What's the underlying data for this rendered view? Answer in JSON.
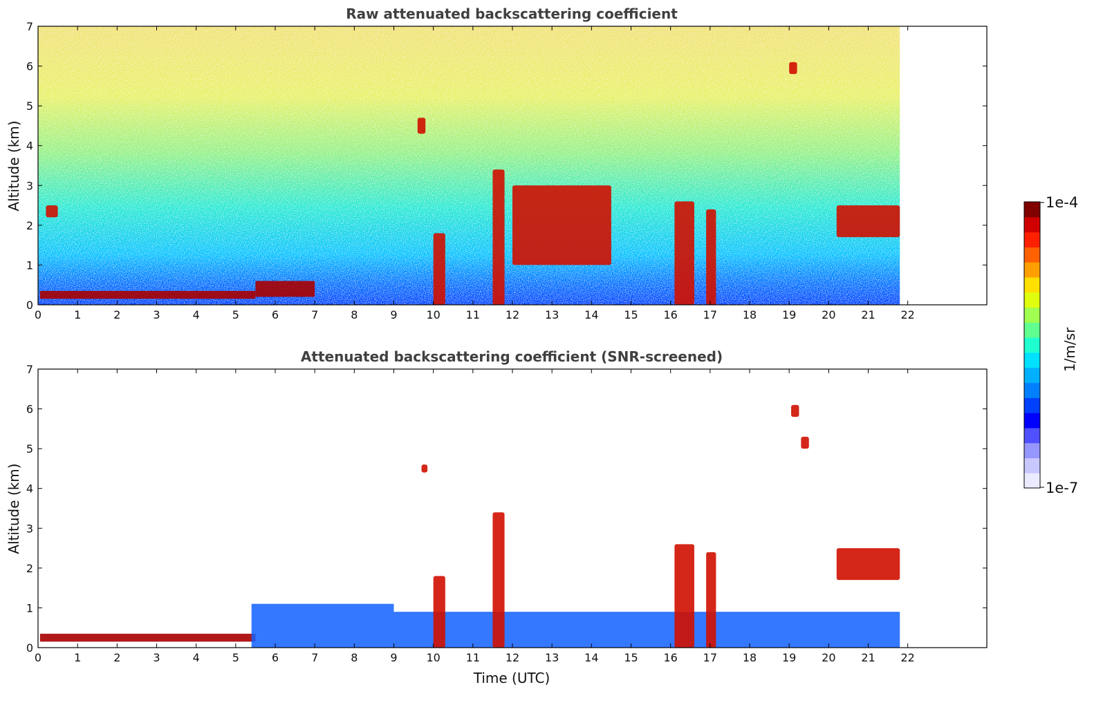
{
  "chart_data": [
    {
      "type": "heatmap",
      "title": "Raw attenuated backscattering coefficient",
      "xlabel": "",
      "ylabel": "Altitude (km)",
      "xlim": [
        0,
        24
      ],
      "ylim": [
        0,
        7
      ],
      "x_ticks": [
        "0",
        "1",
        "2",
        "3",
        "4",
        "5",
        "6",
        "7",
        "8",
        "9",
        "10",
        "11",
        "12",
        "13",
        "14",
        "15",
        "16",
        "17",
        "18",
        "19",
        "20",
        "21",
        "22"
      ],
      "y_ticks": [
        "0",
        "1",
        "2",
        "3",
        "4",
        "5",
        "6",
        "7"
      ],
      "data_extent_time": [
        0,
        21.8
      ],
      "features": [
        {
          "kind": "aerosol_layer",
          "time": [
            0.05,
            5.5
          ],
          "altitude": [
            0.15,
            0.35
          ]
        },
        {
          "kind": "aerosol_layer",
          "time": [
            5.5,
            7.0
          ],
          "altitude": [
            0.2,
            0.6
          ]
        },
        {
          "kind": "cloud",
          "time": [
            0.2,
            0.5
          ],
          "altitude": [
            2.2,
            2.5
          ]
        },
        {
          "kind": "cloud",
          "time": [
            9.6,
            9.8
          ],
          "altitude": [
            4.3,
            4.7
          ]
        },
        {
          "kind": "cloud",
          "time": [
            10.0,
            10.3
          ],
          "altitude": [
            0.0,
            1.8
          ]
        },
        {
          "kind": "cloud",
          "time": [
            11.5,
            11.8
          ],
          "altitude": [
            0.0,
            3.4
          ]
        },
        {
          "kind": "cloud",
          "time": [
            12.0,
            14.5
          ],
          "altitude": [
            1.0,
            3.0
          ]
        },
        {
          "kind": "cloud",
          "time": [
            16.1,
            16.6
          ],
          "altitude": [
            0.0,
            2.6
          ]
        },
        {
          "kind": "cloud",
          "time": [
            16.9,
            17.15
          ],
          "altitude": [
            0.0,
            2.4
          ]
        },
        {
          "kind": "cloud",
          "time": [
            19.0,
            19.2
          ],
          "altitude": [
            5.8,
            6.1
          ]
        },
        {
          "kind": "cloud",
          "time": [
            20.2,
            21.8
          ],
          "altitude": [
            1.7,
            2.5
          ]
        }
      ]
    },
    {
      "type": "heatmap",
      "title": "Attenuated backscattering coefficient (SNR-screened)",
      "xlabel": "Time (UTC)",
      "ylabel": "Altitude (km)",
      "xlim": [
        0,
        24
      ],
      "ylim": [
        0,
        7
      ],
      "x_ticks": [
        "0",
        "1",
        "2",
        "3",
        "4",
        "5",
        "6",
        "7",
        "8",
        "9",
        "10",
        "11",
        "12",
        "13",
        "14",
        "15",
        "16",
        "17",
        "18",
        "19",
        "20",
        "21",
        "22"
      ],
      "y_ticks": [
        "0",
        "1",
        "2",
        "3",
        "4",
        "5",
        "6",
        "7"
      ],
      "data_extent_time": [
        0,
        21.8
      ],
      "features": [
        {
          "kind": "aerosol_layer",
          "time": [
            0.05,
            5.5
          ],
          "altitude": [
            0.15,
            0.35
          ]
        },
        {
          "kind": "boundary_layer",
          "time": [
            5.4,
            9.0
          ],
          "altitude": [
            0.0,
            1.1
          ]
        },
        {
          "kind": "boundary_layer",
          "time": [
            9.0,
            21.8
          ],
          "altitude": [
            0.0,
            0.9
          ]
        },
        {
          "kind": "cloud",
          "time": [
            9.7,
            9.85
          ],
          "altitude": [
            4.4,
            4.6
          ]
        },
        {
          "kind": "cloud",
          "time": [
            10.0,
            10.3
          ],
          "altitude": [
            0.0,
            1.8
          ]
        },
        {
          "kind": "cloud",
          "time": [
            11.5,
            11.8
          ],
          "altitude": [
            0.0,
            3.4
          ]
        },
        {
          "kind": "cloud",
          "time": [
            16.1,
            16.6
          ],
          "altitude": [
            0.0,
            2.6
          ]
        },
        {
          "kind": "cloud",
          "time": [
            16.9,
            17.15
          ],
          "altitude": [
            0.0,
            2.4
          ]
        },
        {
          "kind": "cloud",
          "time": [
            19.05,
            19.25
          ],
          "altitude": [
            5.8,
            6.1
          ]
        },
        {
          "kind": "cloud",
          "time": [
            19.3,
            19.5
          ],
          "altitude": [
            5.0,
            5.3
          ]
        },
        {
          "kind": "cloud",
          "time": [
            20.2,
            21.8
          ],
          "altitude": [
            1.7,
            2.5
          ]
        }
      ]
    }
  ],
  "colorbar": {
    "label": "1/m/sr",
    "max_label": "1e-4",
    "min_label": "1e-7",
    "colors": [
      "#ebebff",
      "#c8c8ff",
      "#9696ff",
      "#5050ff",
      "#0000ff",
      "#0040ff",
      "#0080ff",
      "#00b0ff",
      "#00e0ff",
      "#20ffd0",
      "#60ff90",
      "#a0ff50",
      "#e0ff10",
      "#ffe000",
      "#ffa000",
      "#ff6000",
      "#ff2000",
      "#d00000",
      "#800000"
    ]
  }
}
